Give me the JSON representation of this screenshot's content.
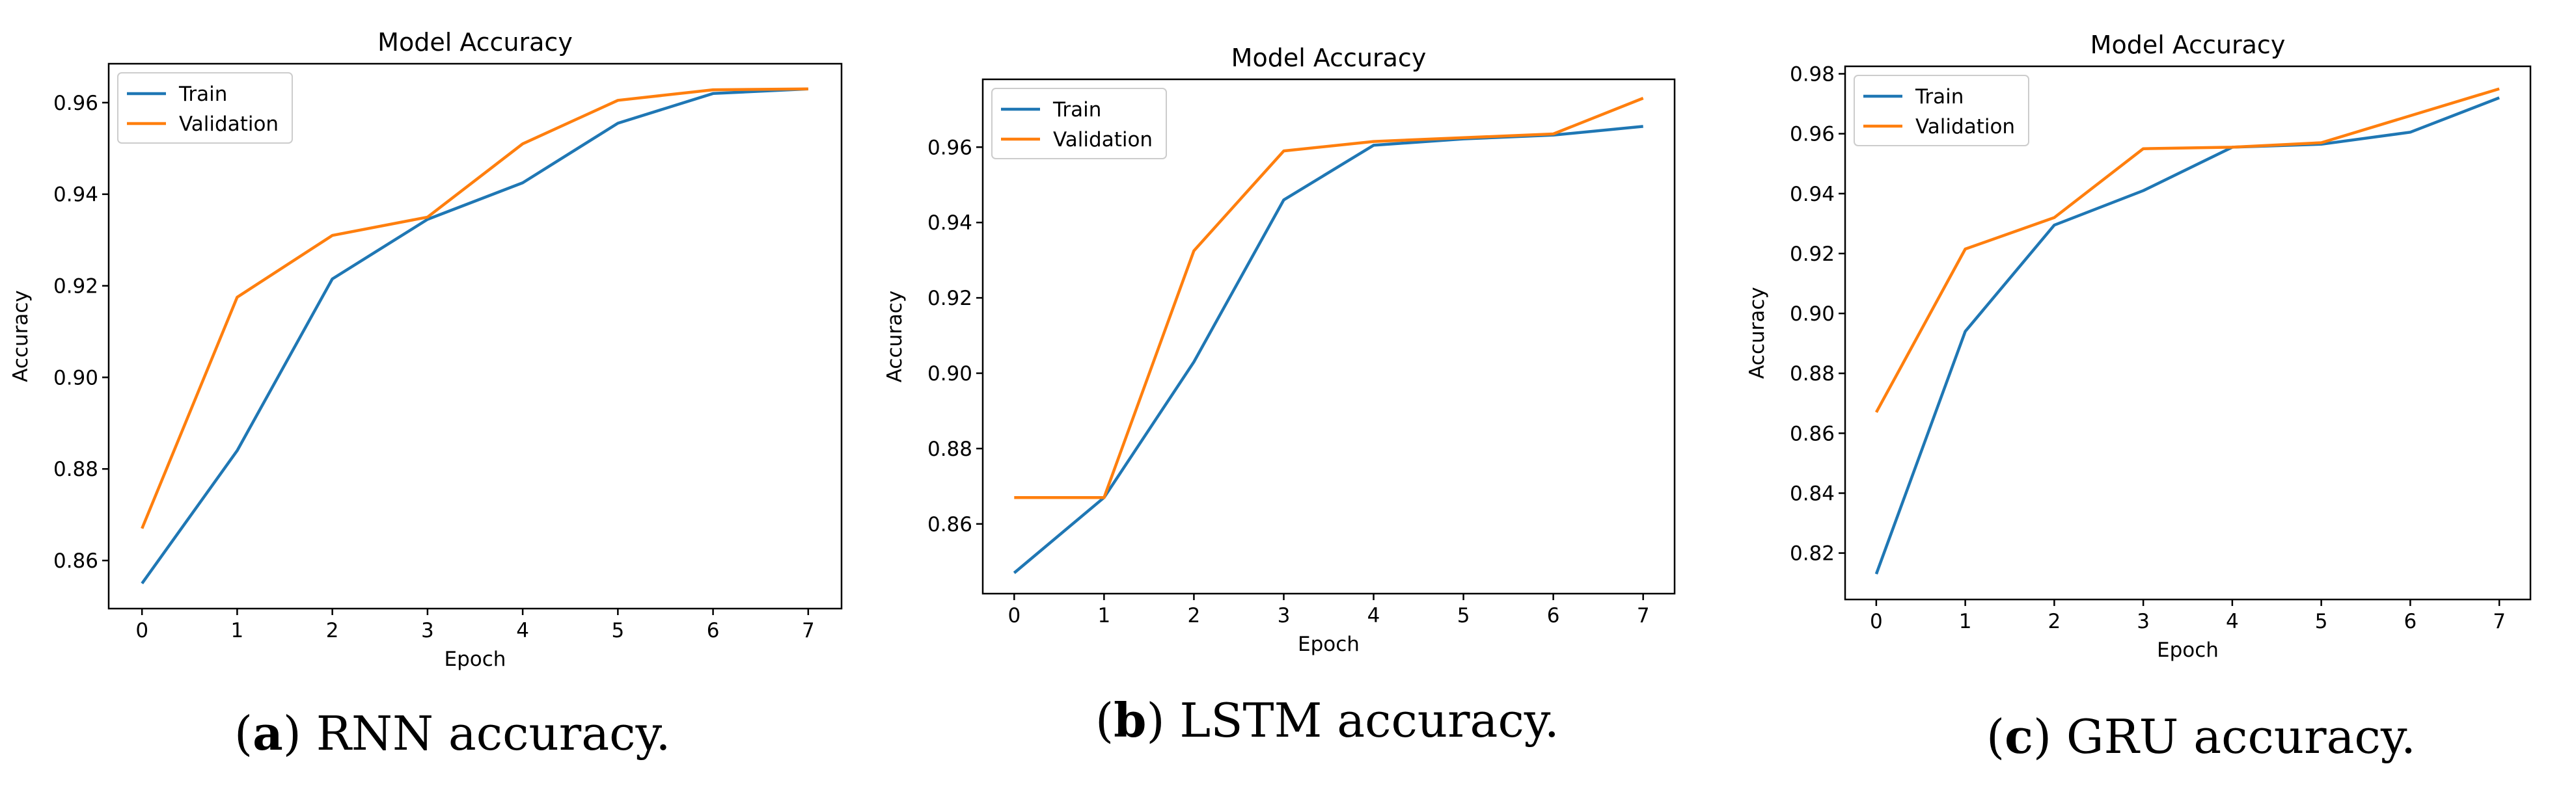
{
  "figures": [
    {
      "caption_letter": "a",
      "caption_text": "RNN accuracy."
    },
    {
      "caption_letter": "b",
      "caption_text": "LSTM accuracy."
    },
    {
      "caption_letter": "c",
      "caption_text": "GRU accuracy."
    }
  ],
  "colors": {
    "train": "#1f77b4",
    "validation": "#ff7f0e"
  },
  "chart_data": [
    {
      "type": "line",
      "title": "Model Accuracy",
      "xlabel": "Epoch",
      "ylabel": "Accuracy",
      "x": [
        0,
        1,
        2,
        3,
        4,
        5,
        6,
        7
      ],
      "xlim": [
        -0.35,
        7.35
      ],
      "ylim": [
        0.8495,
        0.9685
      ],
      "yticks": [
        0.86,
        0.88,
        0.9,
        0.92,
        0.94,
        0.96
      ],
      "xticks": [
        0,
        1,
        2,
        3,
        4,
        5,
        6,
        7
      ],
      "legend": "top-left",
      "series": [
        {
          "name": "Train",
          "values": [
            0.855,
            0.884,
            0.9215,
            0.9345,
            0.9425,
            0.9555,
            0.962,
            0.963
          ]
        },
        {
          "name": "Validation",
          "values": [
            0.867,
            0.9175,
            0.931,
            0.935,
            0.951,
            0.9605,
            0.9628,
            0.963
          ]
        }
      ]
    },
    {
      "type": "line",
      "title": "Model Accuracy",
      "xlabel": "Epoch",
      "ylabel": "Accuracy",
      "x": [
        0,
        1,
        2,
        3,
        4,
        5,
        6,
        7
      ],
      "xlim": [
        -0.35,
        7.35
      ],
      "ylim": [
        0.8415,
        0.978
      ],
      "yticks": [
        0.86,
        0.88,
        0.9,
        0.92,
        0.94,
        0.96
      ],
      "xticks": [
        0,
        1,
        2,
        3,
        4,
        5,
        6,
        7
      ],
      "legend": "top-left",
      "series": [
        {
          "name": "Train",
          "values": [
            0.847,
            0.867,
            0.903,
            0.946,
            0.9605,
            0.9622,
            0.9632,
            0.9655
          ]
        },
        {
          "name": "Validation",
          "values": [
            0.867,
            0.867,
            0.9325,
            0.959,
            0.9615,
            0.9625,
            0.9635,
            0.973
          ]
        }
      ]
    },
    {
      "type": "line",
      "title": "Model Accuracy",
      "xlabel": "Epoch",
      "ylabel": "Accuracy",
      "x": [
        0,
        1,
        2,
        3,
        4,
        5,
        6,
        7
      ],
      "xlim": [
        -0.35,
        7.35
      ],
      "ylim": [
        0.8045,
        0.9825
      ],
      "yticks": [
        0.82,
        0.84,
        0.86,
        0.88,
        0.9,
        0.92,
        0.94,
        0.96,
        0.98
      ],
      "xticks": [
        0,
        1,
        2,
        3,
        4,
        5,
        6,
        7
      ],
      "legend": "top-left",
      "series": [
        {
          "name": "Train",
          "values": [
            0.813,
            0.894,
            0.9295,
            0.941,
            0.9555,
            0.9565,
            0.9605,
            0.972
          ]
        },
        {
          "name": "Validation",
          "values": [
            0.867,
            0.9215,
            0.932,
            0.955,
            0.9555,
            0.957,
            0.966,
            0.975
          ]
        }
      ]
    }
  ]
}
